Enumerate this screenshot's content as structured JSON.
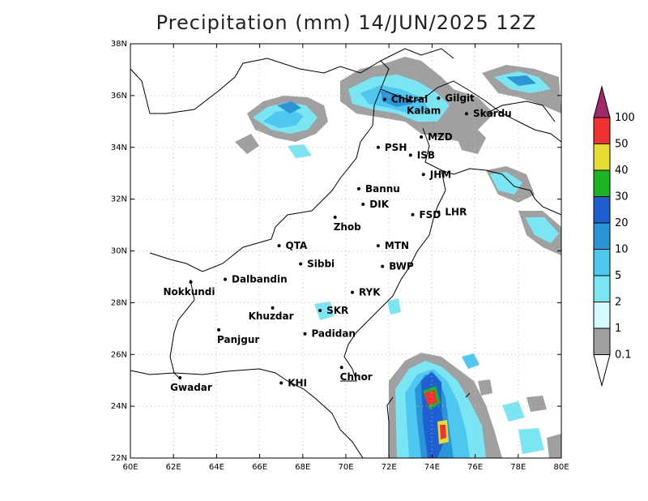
{
  "title": "Precipitation (mm) 14/JUN/2025 12Z",
  "map": {
    "lon_range": [
      60,
      80
    ],
    "lat_range": [
      22,
      38
    ],
    "lon_ticks": [
      "60E",
      "62E",
      "64E",
      "66E",
      "68E",
      "70E",
      "72E",
      "74E",
      "76E",
      "78E",
      "80E"
    ],
    "lat_ticks": [
      "22N",
      "24N",
      "26N",
      "28N",
      "30N",
      "32N",
      "34N",
      "36N",
      "38N"
    ],
    "grid": "dotted"
  },
  "cities": [
    {
      "name": "Chitral",
      "lon": 71.8,
      "lat": 35.85
    },
    {
      "name": "Gilgit",
      "lon": 74.3,
      "lat": 35.9
    },
    {
      "name": "Kalam",
      "lon": 72.9,
      "lat": 35.8
    },
    {
      "name": "Skardu",
      "lon": 75.6,
      "lat": 35.3
    },
    {
      "name": "MZD",
      "lon": 73.5,
      "lat": 34.4
    },
    {
      "name": "PSH",
      "lon": 71.5,
      "lat": 34.0
    },
    {
      "name": "ISB",
      "lon": 73.0,
      "lat": 33.7
    },
    {
      "name": "JHM",
      "lon": 73.6,
      "lat": 32.95
    },
    {
      "name": "Bannu",
      "lon": 70.6,
      "lat": 32.4
    },
    {
      "name": "DIK",
      "lon": 70.8,
      "lat": 31.8
    },
    {
      "name": "FSD",
      "lon": 73.1,
      "lat": 31.4
    },
    {
      "name": "LHR",
      "lon": 74.3,
      "lat": 31.5
    },
    {
      "name": "Zhob",
      "lon": 69.5,
      "lat": 31.3
    },
    {
      "name": "QTA",
      "lon": 66.9,
      "lat": 30.2
    },
    {
      "name": "MTN",
      "lon": 71.5,
      "lat": 30.2
    },
    {
      "name": "Sibbi",
      "lon": 67.9,
      "lat": 29.5
    },
    {
      "name": "BWP",
      "lon": 71.7,
      "lat": 29.4
    },
    {
      "name": "Nokkundi",
      "lon": 62.8,
      "lat": 28.8
    },
    {
      "name": "Dalbandin",
      "lon": 64.4,
      "lat": 28.9
    },
    {
      "name": "RYK",
      "lon": 70.3,
      "lat": 28.4
    },
    {
      "name": "Khuzdar",
      "lon": 66.6,
      "lat": 27.8
    },
    {
      "name": "SKR",
      "lon": 68.8,
      "lat": 27.7
    },
    {
      "name": "Panjgur",
      "lon": 64.1,
      "lat": 26.95
    },
    {
      "name": "Padidan",
      "lon": 68.1,
      "lat": 26.8
    },
    {
      "name": "Chhor",
      "lon": 69.8,
      "lat": 25.5
    },
    {
      "name": "KHI",
      "lon": 67.0,
      "lat": 24.9
    },
    {
      "name": "Gwadar",
      "lon": 62.3,
      "lat": 25.1
    }
  ],
  "colorbar": {
    "labels": [
      "0.1",
      "1",
      "2",
      "5",
      "10",
      "20",
      "30",
      "40",
      "50",
      "100"
    ],
    "colors": [
      "#a0a0a0",
      "#d2faff",
      "#7ae6f4",
      "#4ec8f0",
      "#2a96d8",
      "#1e5fd2",
      "#1eb424",
      "#e6dc32",
      "#f03232",
      "#a0286e"
    ]
  }
}
